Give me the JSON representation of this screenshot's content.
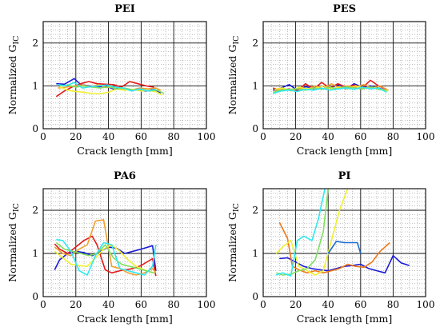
{
  "chart_data": [
    {
      "type": "line",
      "title": "PEI",
      "xlabel": "Crack length [mm]",
      "ylabel_main": "Normalized G",
      "ylabel_sub": "IC",
      "xlim": [
        0,
        100
      ],
      "ylim": [
        0,
        2.5
      ],
      "xticks": [
        "0",
        "20",
        "40",
        "60",
        "80",
        "100"
      ],
      "yticks": [
        "0",
        "1",
        "2"
      ],
      "grid": true,
      "series": [
        {
          "color": "#1a1ad6",
          "x": [
            8,
            13,
            19,
            23,
            28,
            33,
            38,
            43,
            48,
            53,
            58,
            63,
            68,
            72
          ],
          "y": [
            1.05,
            1.04,
            1.17,
            1.03,
            1.0,
            0.97,
            1.0,
            0.93,
            0.95,
            0.92,
            0.9,
            0.88,
            0.92,
            0.83
          ]
        },
        {
          "color": "#e41a1a",
          "x": [
            8,
            13,
            18,
            23,
            28,
            33,
            38,
            43,
            48,
            53,
            58,
            63,
            68
          ],
          "y": [
            0.75,
            0.88,
            0.98,
            1.05,
            1.1,
            1.05,
            1.04,
            1.03,
            0.97,
            1.1,
            1.05,
            1.0,
            0.97
          ]
        },
        {
          "color": "#f0a030",
          "x": [
            9,
            14,
            19,
            24,
            29,
            34,
            39,
            44,
            49,
            54,
            59,
            64,
            69,
            72
          ],
          "y": [
            0.95,
            0.97,
            1.0,
            1.02,
            0.98,
            1.03,
            0.96,
            0.98,
            0.93,
            0.9,
            0.95,
            0.93,
            0.95,
            0.9
          ]
        },
        {
          "color": "#f0f030",
          "x": [
            10,
            15,
            20,
            25,
            30,
            35,
            40,
            45,
            50,
            55,
            60,
            65,
            70,
            73
          ],
          "y": [
            0.98,
            0.9,
            0.87,
            0.85,
            0.82,
            0.82,
            0.85,
            0.93,
            0.9,
            0.92,
            0.88,
            0.9,
            0.85,
            0.78
          ]
        },
        {
          "color": "#80e060",
          "x": [
            10,
            15,
            20,
            25,
            30,
            35,
            40,
            45,
            50,
            55,
            60,
            65,
            70,
            74
          ],
          "y": [
            1.0,
            1.02,
            0.97,
            1.0,
            0.97,
            0.95,
            0.98,
            0.93,
            0.95,
            0.9,
            0.92,
            0.88,
            0.9,
            0.82
          ]
        },
        {
          "color": "#30e8f0",
          "x": [
            9,
            14,
            19,
            24,
            29,
            34,
            39,
            44,
            49,
            54,
            59,
            64,
            69
          ],
          "y": [
            1.03,
            1.0,
            1.08,
            0.95,
            0.98,
            1.0,
            1.02,
            0.97,
            0.95,
            0.88,
            0.93,
            0.88,
            0.92
          ]
        }
      ]
    },
    {
      "type": "line",
      "title": "PES",
      "xlabel": "Crack length [mm]",
      "ylabel_main": "Normalized G",
      "ylabel_sub": "IC",
      "xlim": [
        0,
        100
      ],
      "ylim": [
        0,
        2.5
      ],
      "xticks": [
        "0",
        "20",
        "40",
        "60",
        "80",
        "100"
      ],
      "yticks": [
        "0",
        "1",
        "2"
      ],
      "grid": true,
      "series": [
        {
          "color": "#1a1ad6",
          "x": [
            6,
            11,
            16,
            21,
            26,
            31,
            36,
            41,
            46,
            51,
            56,
            61,
            66,
            71,
            76
          ],
          "y": [
            0.9,
            0.95,
            1.03,
            0.9,
            0.98,
            0.95,
            1.0,
            0.95,
            1.02,
            0.93,
            1.05,
            0.97,
            1.0,
            0.95,
            0.9
          ]
        },
        {
          "color": "#e41a1a",
          "x": [
            6,
            11,
            16,
            21,
            26,
            31,
            36,
            41,
            46,
            51,
            56,
            61,
            66,
            71,
            76
          ],
          "y": [
            0.95,
            0.9,
            0.93,
            0.88,
            1.05,
            0.93,
            1.08,
            0.95,
            1.05,
            0.97,
            1.02,
            0.95,
            1.13,
            1.0,
            0.92
          ]
        },
        {
          "color": "#f0a030",
          "x": [
            7,
            12,
            17,
            22,
            27,
            32,
            37,
            42,
            47,
            52,
            57,
            62,
            67,
            72,
            77
          ],
          "y": [
            0.88,
            0.93,
            0.9,
            0.95,
            0.92,
            1.0,
            0.93,
            1.05,
            0.95,
            1.0,
            0.97,
            1.03,
            0.95,
            1.0,
            0.9
          ]
        },
        {
          "color": "#f0f030",
          "x": [
            7,
            12,
            17,
            22,
            27,
            32,
            37,
            42,
            47,
            52,
            57,
            62,
            67,
            72,
            77
          ],
          "y": [
            0.92,
            0.95,
            0.88,
            0.97,
            0.93,
            0.95,
            1.0,
            0.92,
            0.98,
            0.93,
            1.0,
            0.95,
            0.97,
            0.93,
            0.88
          ]
        },
        {
          "color": "#80e060",
          "x": [
            6,
            11,
            16,
            21,
            26,
            31,
            36,
            41,
            46,
            51,
            56,
            61,
            66,
            71,
            76
          ],
          "y": [
            0.85,
            0.9,
            0.92,
            0.93,
            0.9,
            0.95,
            0.92,
            0.97,
            0.93,
            0.98,
            0.95,
            0.93,
            0.97,
            0.92,
            0.88
          ]
        },
        {
          "color": "#30e8f0",
          "x": [
            6,
            11,
            16,
            21,
            26,
            31,
            36,
            41,
            46,
            51,
            56,
            61,
            66,
            71,
            76
          ],
          "y": [
            0.82,
            0.88,
            0.9,
            0.87,
            0.92,
            0.9,
            0.95,
            0.9,
            0.93,
            0.95,
            0.92,
            0.97,
            0.93,
            0.95,
            0.85
          ]
        }
      ]
    },
    {
      "type": "line",
      "title": "PA6",
      "xlabel": "Crack length [mm]",
      "ylabel_main": "Normalized G",
      "ylabel_sub": "IC",
      "xlim": [
        0,
        100
      ],
      "ylim": [
        0,
        2.5
      ],
      "xticks": [
        "0",
        "20",
        "40",
        "60",
        "80",
        "100"
      ],
      "yticks": [
        "0",
        "1",
        "2"
      ],
      "grid": true,
      "series": [
        {
          "color": "#1a1ad6",
          "x": [
            7,
            10,
            15,
            20,
            25,
            30,
            35,
            40,
            45,
            50,
            55,
            60,
            67,
            69
          ],
          "y": [
            0.62,
            0.85,
            1.0,
            1.05,
            1.02,
            0.95,
            1.05,
            1.15,
            1.12,
            1.0,
            1.05,
            1.1,
            1.18,
            0.6
          ]
        },
        {
          "color": "#e41a1a",
          "x": [
            7,
            10,
            15,
            20,
            25,
            30,
            33,
            38,
            42,
            47,
            55,
            60,
            67,
            69
          ],
          "y": [
            1.22,
            1.1,
            1.0,
            1.15,
            1.3,
            1.4,
            1.2,
            0.62,
            0.55,
            0.6,
            0.65,
            0.72,
            0.88,
            0.48
          ]
        },
        {
          "color": "#f0a030",
          "x": [
            7,
            12,
            17,
            22,
            27,
            32,
            37,
            42,
            47,
            52,
            57,
            62,
            67,
            69
          ],
          "y": [
            1.15,
            1.0,
            0.95,
            1.1,
            1.2,
            1.75,
            1.78,
            0.7,
            0.65,
            0.55,
            0.5,
            0.55,
            0.65,
            0.55
          ]
        },
        {
          "color": "#f0f030",
          "x": [
            7,
            12,
            17,
            22,
            27,
            32,
            37,
            42,
            47,
            52,
            57,
            62,
            67
          ],
          "y": [
            1.05,
            0.9,
            0.75,
            0.72,
            0.7,
            0.9,
            1.1,
            1.2,
            1.05,
            0.85,
            0.7,
            0.62,
            0.55
          ]
        },
        {
          "color": "#80e060",
          "x": [
            8,
            13,
            18,
            23,
            28,
            33,
            38,
            43,
            48,
            53,
            58,
            63,
            68
          ],
          "y": [
            1.25,
            1.1,
            1.05,
            1.0,
            0.95,
            1.0,
            1.2,
            0.9,
            0.75,
            0.7,
            0.65,
            0.6,
            0.55
          ]
        },
        {
          "color": "#30e8f0",
          "x": [
            8,
            12,
            17,
            22,
            27,
            32,
            37,
            42,
            47,
            52,
            57,
            62,
            67,
            69
          ],
          "y": [
            1.32,
            1.3,
            1.05,
            0.6,
            0.5,
            0.95,
            1.25,
            1.2,
            0.65,
            0.6,
            0.55,
            0.5,
            0.7,
            1.2
          ]
        }
      ]
    },
    {
      "type": "line",
      "title": "PI",
      "xlabel": "Crack length [mm]",
      "ylabel_main": "Normalized G",
      "ylabel_sub": "IC",
      "xlim": [
        0,
        100
      ],
      "ylim": [
        0,
        2.5
      ],
      "xticks": [
        "0",
        "20",
        "40",
        "60",
        "80",
        "100"
      ],
      "yticks": [
        "0",
        "1",
        "2"
      ],
      "grid": true,
      "series": [
        {
          "color": "#1a1ad6",
          "x": [
            10,
            15,
            20,
            25,
            30,
            35,
            40,
            45,
            50,
            55,
            60,
            65,
            70,
            75,
            80,
            85,
            90
          ],
          "y": [
            0.88,
            0.9,
            0.8,
            0.7,
            0.65,
            0.62,
            0.6,
            0.65,
            0.7,
            0.72,
            0.75,
            0.65,
            0.6,
            0.55,
            0.95,
            0.78,
            0.72
          ]
        },
        {
          "color": "#f07818",
          "x": [
            10,
            15,
            18,
            22,
            27,
            32,
            37,
            42,
            47,
            52,
            57,
            62,
            67,
            72,
            78
          ],
          "y": [
            1.72,
            1.35,
            0.7,
            0.62,
            0.55,
            0.6,
            0.55,
            0.6,
            0.65,
            0.75,
            0.7,
            0.68,
            0.8,
            1.05,
            1.25
          ]
        },
        {
          "color": "#f0f030",
          "x": [
            8,
            12,
            17,
            22,
            27,
            32,
            37,
            42,
            47,
            52
          ],
          "y": [
            1.0,
            1.15,
            1.3,
            0.7,
            0.6,
            0.5,
            0.6,
            1.3,
            2.0,
            2.5
          ]
        },
        {
          "color": "#80e060",
          "x": [
            8,
            12,
            17,
            22,
            27,
            32,
            37,
            40
          ],
          "y": [
            0.55,
            0.5,
            0.52,
            0.6,
            0.65,
            0.85,
            1.5,
            2.5
          ]
        },
        {
          "color": "#30e8f0",
          "x": [
            8,
            12,
            17,
            21,
            25,
            30,
            34,
            38
          ],
          "y": [
            0.5,
            0.55,
            0.48,
            1.3,
            1.4,
            1.3,
            1.8,
            2.5
          ]
        },
        {
          "color": "#1a6ad6",
          "x": [
            40,
            45,
            50,
            55,
            58,
            60
          ],
          "y": [
            1.0,
            1.28,
            1.25,
            1.25,
            1.25,
            1.0
          ]
        }
      ]
    }
  ]
}
